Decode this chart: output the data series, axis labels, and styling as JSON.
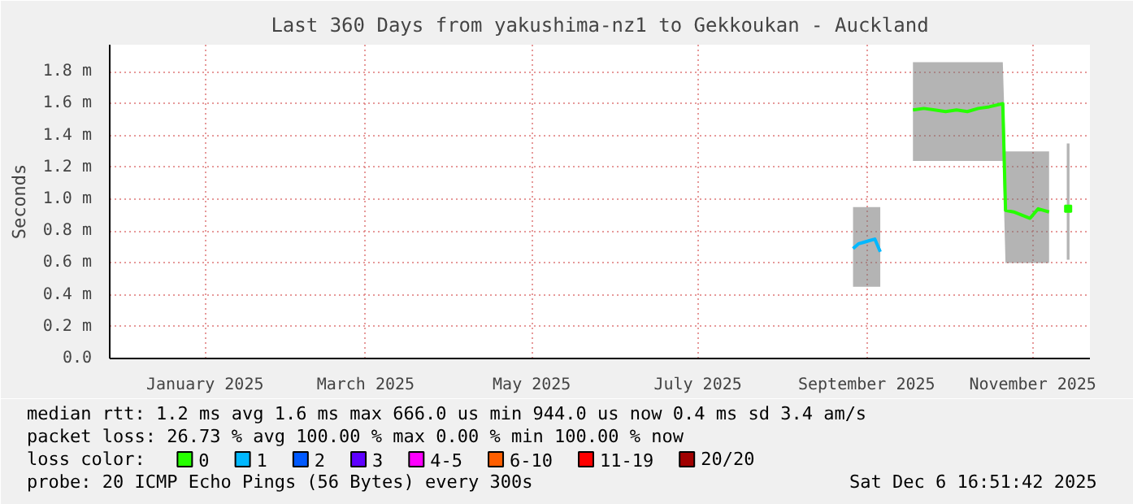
{
  "chart_data": {
    "type": "line",
    "title": "Last 360 Days from yakushima-nz1 to Gekkoukan - Auckland",
    "ylabel": "Seconds",
    "x": [
      "2025-09-10",
      "2025-09-12",
      "2025-09-14",
      "2025-09-16",
      "2025-09-18",
      "2025-09-20",
      "2025-09-26",
      "2025-10-02",
      "2025-10-06",
      "2025-10-10",
      "2025-10-14",
      "2025-10-18",
      "2025-10-22",
      "2025-10-26",
      "2025-10-30",
      "2025-11-04",
      "2025-11-05",
      "2025-11-08",
      "2025-11-11",
      "2025-11-14",
      "2025-11-17",
      "2025-11-21",
      "2025-11-25",
      "2025-11-28"
    ],
    "series": [
      {
        "name": "0",
        "color": "#26ff00",
        "values": [
          null,
          null,
          null,
          null,
          null,
          null,
          null,
          1.56,
          1.57,
          1.56,
          1.55,
          1.56,
          1.55,
          1.57,
          1.58,
          1.6,
          0.93,
          0.92,
          0.9,
          0.88,
          0.94,
          0.92,
          null,
          0.94
        ],
        "lower": [
          null,
          null,
          null,
          null,
          null,
          null,
          null,
          1.24,
          1.24,
          1.24,
          1.24,
          1.24,
          1.24,
          1.24,
          1.24,
          1.24,
          0.6,
          0.6,
          0.6,
          0.6,
          0.6,
          0.6,
          null,
          0.62
        ],
        "upper": [
          null,
          null,
          null,
          null,
          null,
          null,
          null,
          1.86,
          1.86,
          1.86,
          1.86,
          1.86,
          1.86,
          1.86,
          1.86,
          1.86,
          1.3,
          1.3,
          1.3,
          1.3,
          1.3,
          1.3,
          null,
          1.35
        ]
      },
      {
        "name": "1",
        "color": "#00b8ff",
        "values": [
          0.69,
          0.72,
          0.73,
          0.74,
          0.75,
          0.67,
          null,
          null,
          null,
          null,
          null,
          null,
          null,
          null,
          null,
          null,
          null,
          null,
          null,
          null,
          null,
          null,
          null,
          null
        ],
        "lower": [
          0.45,
          0.45,
          0.45,
          0.45,
          0.45,
          0.45,
          null,
          null,
          null,
          null,
          null,
          null,
          null,
          null,
          null,
          null,
          null,
          null,
          null,
          null,
          null,
          null,
          null,
          null
        ],
        "upper": [
          0.95,
          0.95,
          0.95,
          0.95,
          0.95,
          0.95,
          null,
          null,
          null,
          null,
          null,
          null,
          null,
          null,
          null,
          null,
          null,
          null,
          null,
          null,
          null,
          null,
          null,
          null
        ]
      },
      {
        "name": "2",
        "color": "#0059ff",
        "values": [
          null,
          null,
          null,
          null,
          null,
          null,
          null,
          null,
          null,
          null,
          null,
          null,
          null,
          null,
          null,
          null,
          null,
          null,
          null,
          null,
          null,
          null,
          null,
          null
        ]
      },
      {
        "name": "3",
        "color": "#5e00ff",
        "values": [
          null,
          null,
          null,
          null,
          null,
          null,
          null,
          null,
          null,
          null,
          null,
          null,
          null,
          null,
          null,
          null,
          null,
          null,
          null,
          null,
          null,
          null,
          null,
          null
        ]
      },
      {
        "name": "4-5",
        "color": "#ff00ff",
        "values": [
          null,
          null,
          null,
          null,
          null,
          null,
          null,
          null,
          null,
          null,
          null,
          null,
          null,
          null,
          null,
          null,
          null,
          null,
          null,
          null,
          null,
          null,
          null,
          null
        ]
      },
      {
        "name": "6-10",
        "color": "#ff5e00",
        "values": [
          null,
          null,
          null,
          null,
          null,
          null,
          null,
          null,
          null,
          null,
          null,
          null,
          null,
          null,
          null,
          null,
          null,
          null,
          null,
          null,
          null,
          null,
          null,
          null
        ]
      },
      {
        "name": "11-19",
        "color": "#ff0000",
        "values": [
          null,
          null,
          null,
          null,
          null,
          null,
          null,
          null,
          null,
          null,
          null,
          null,
          null,
          null,
          null,
          null,
          null,
          null,
          null,
          null,
          null,
          null,
          null,
          null
        ]
      },
      {
        "name": "20/20",
        "color": "#a10000",
        "values": [
          null,
          null,
          null,
          null,
          null,
          null,
          null,
          null,
          null,
          null,
          null,
          null,
          null,
          null,
          null,
          null,
          null,
          null,
          null,
          null,
          null,
          null,
          null,
          null
        ]
      }
    ],
    "legend_title": "loss color:",
    "legend": "bottom",
    "xlim": [
      "2024-12-11",
      "2025-12-06"
    ],
    "xticks": [
      {
        "value": "2025-01-15",
        "label": "January 2025"
      },
      {
        "value": "2025-03-15",
        "label": "March 2025"
      },
      {
        "value": "2025-05-15",
        "label": "May 2025"
      },
      {
        "value": "2025-07-15",
        "label": "July 2025"
      },
      {
        "value": "2025-09-15",
        "label": "September 2025"
      },
      {
        "value": "2025-11-15",
        "label": "November 2025"
      }
    ],
    "ylim": [
      0,
      1.97
    ],
    "yticks": [
      {
        "value": 0,
        "label": "0.0"
      },
      {
        "value": 0.2,
        "label": "0.2 m"
      },
      {
        "value": 0.4,
        "label": "0.4 m"
      },
      {
        "value": 0.6,
        "label": "0.6 m"
      },
      {
        "value": 0.8,
        "label": "0.8 m"
      },
      {
        "value": 1.0,
        "label": "1.0 m"
      },
      {
        "value": 1.2,
        "label": "1.2 m"
      },
      {
        "value": 1.4,
        "label": "1.4 m"
      },
      {
        "value": 1.6,
        "label": "1.6 m"
      },
      {
        "value": 1.8,
        "label": "1.8 m"
      }
    ],
    "grid": true,
    "annotations": [
      "median rtt:  1.2 ms avg  1.6 ms max  666.0 us min  944.0 us now  0.4 ms sd  3.4   am/s",
      "packet loss: 26.73 % avg  100.00 % max  0.00 % min  100.00 % now",
      "probe:       20 ICMP Echo Pings (56 Bytes) every 300s",
      "Sat Dec  6 16:51:42 2025"
    ]
  }
}
